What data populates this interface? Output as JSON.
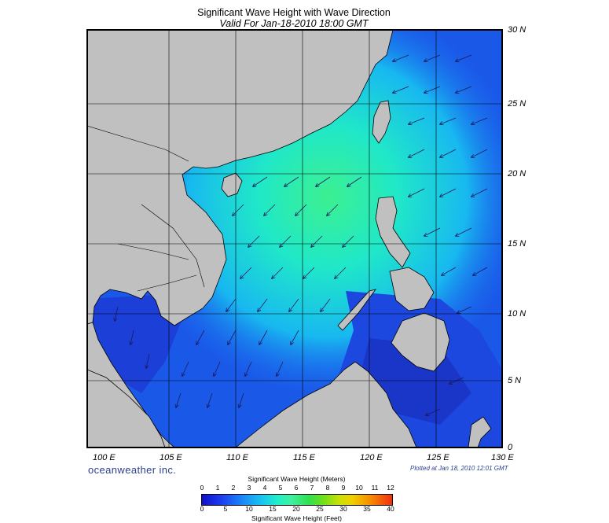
{
  "title": "Significant Wave Height with Wave Direction",
  "subtitle": "Valid For Jan-18-2010 18:00 GMT",
  "lat_labels": [
    "30 N",
    "25 N",
    "20 N",
    "15 N",
    "10 N",
    "5 N",
    "0"
  ],
  "lon_labels": [
    "100 E",
    "105 E",
    "110 E",
    "115 E",
    "120 E",
    "125 E",
    "130 E"
  ],
  "brand": "oceanweather inc.",
  "plotted": "Plotted at Jan 18, 2010 12:01 GMT",
  "colorbar": {
    "title_top": "Significant Wave Height (Meters)",
    "title_bottom": "Significant Wave Height (Feet)",
    "meters": [
      "0",
      "1",
      "2",
      "3",
      "4",
      "5",
      "6",
      "7",
      "8",
      "9",
      "10",
      "11",
      "12"
    ],
    "feet": [
      "0",
      "5",
      "10",
      "15",
      "20",
      "25",
      "30",
      "35",
      "40"
    ]
  },
  "colors": {
    "land": "#c0c0c0",
    "frame": "#000000",
    "low_wave": "#1a3ce8",
    "mid_wave": "#20e8d0",
    "high_wave": "#40f070"
  }
}
